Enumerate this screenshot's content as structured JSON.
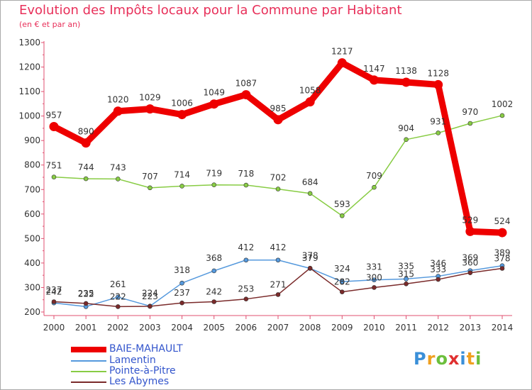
{
  "header": {
    "title": "Evolution des Impôts locaux pour la Commune par Habitant",
    "subtitle": "(en € et par an)"
  },
  "chart_data": {
    "type": "line",
    "title": "Evolution des Impôts locaux pour la Commune par Habitant",
    "subtitle": "(en € et par an)",
    "xlabel": "",
    "ylabel": "",
    "ylim": [
      200,
      1300
    ],
    "yticks": [
      200,
      300,
      400,
      500,
      600,
      700,
      800,
      900,
      1000,
      1100,
      1200,
      1300
    ],
    "categories": [
      "2000",
      "2001",
      "2002",
      "2003",
      "2004",
      "2005",
      "2006",
      "2007",
      "2008",
      "2009",
      "2010",
      "2011",
      "2012",
      "2013",
      "2014"
    ],
    "grid": false,
    "legend_position": "bottom-left",
    "series": [
      {
        "name": "BAIE-MAHAULT",
        "color": "#ee0000",
        "width": "thick",
        "values": [
          957,
          890,
          1020,
          1029,
          1006,
          1049,
          1087,
          985,
          1058,
          1217,
          1147,
          1138,
          1128,
          529,
          524
        ]
      },
      {
        "name": "Lamentin",
        "color": "#5599dd",
        "width": "thin",
        "values": [
          237,
          222,
          261,
          224,
          318,
          368,
          412,
          412,
          378,
          324,
          331,
          335,
          346,
          369,
          389
        ]
      },
      {
        "name": "Pointe-à-Pitre",
        "color": "#88cc44",
        "width": "thin",
        "values": [
          751,
          744,
          743,
          707,
          714,
          719,
          718,
          702,
          684,
          593,
          709,
          904,
          931,
          970,
          1002
        ]
      },
      {
        "name": "Les Abymes",
        "color": "#7a2a2a",
        "width": "thin",
        "values": [
          242,
          235,
          222,
          223,
          237,
          242,
          253,
          271,
          379,
          282,
          300,
          315,
          333,
          360,
          378
        ]
      }
    ]
  },
  "logo": {
    "letters": [
      "P",
      "r",
      "o",
      "x",
      "i",
      "t",
      "i"
    ],
    "colors": [
      "#3a8fd8",
      "#f0a020",
      "#6cbf3c",
      "#e03030",
      "#3a8fd8",
      "#f0a020",
      "#6cbf3c"
    ]
  }
}
